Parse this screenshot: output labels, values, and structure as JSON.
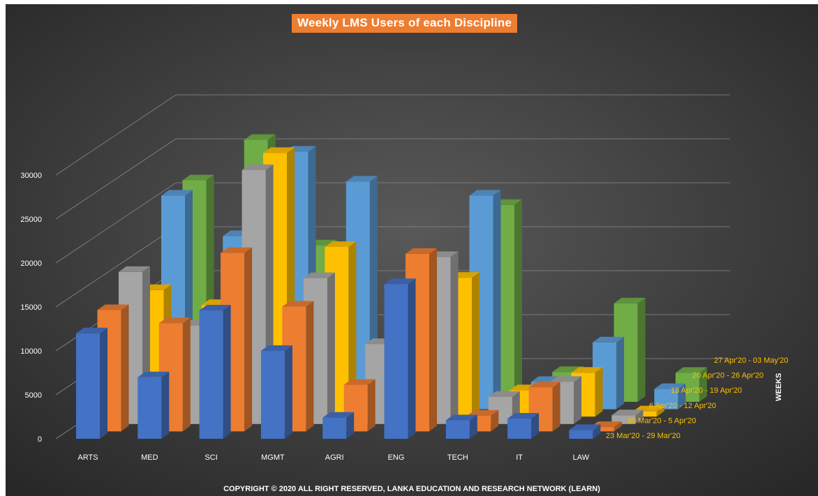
{
  "chart_data": {
    "type": "bar",
    "style": "3d-column",
    "title": "Weekly LMS Users of each Discipline",
    "ylabel": "",
    "xlabel": "",
    "zlabel": "WEEKS",
    "ylim": [
      0,
      30000
    ],
    "yticks": [
      "0",
      "5000",
      "10000",
      "15000",
      "20000",
      "25000",
      "30000"
    ],
    "grid": true,
    "categories": [
      "ARTS",
      "MED",
      "SCI",
      "MGMT",
      "AGRI",
      "ENG",
      "TECH",
      "IT",
      "LAW"
    ],
    "series": [
      {
        "name": "23 Mar'20 - 29 Mar'20",
        "color": "#4472c4",
        "values": [
          12000,
          7000,
          14600,
          10000,
          2400,
          17600,
          2100,
          2300,
          1000
        ]
      },
      {
        "name": "30 Mar'20 - 5 Apr'20",
        "color": "#ed7d31",
        "values": [
          13800,
          12300,
          20300,
          14200,
          5300,
          20200,
          1800,
          5000,
          500
        ]
      },
      {
        "name": "6 Apr'20 - 12 Apr'20",
        "color": "#a5a5a5",
        "values": [
          17300,
          11200,
          28900,
          16600,
          9100,
          19000,
          3100,
          4800,
          1000
        ]
      },
      {
        "name": "13 Apr'20 - 19 Apr'20",
        "color": "#ffc000",
        "values": [
          14400,
          12700,
          30000,
          19300,
          5000,
          15800,
          3000,
          5000,
          600
        ]
      },
      {
        "name": "20 Apr'20 - 26 Apr'20",
        "color": "#5b9bd5",
        "values": [
          24300,
          19700,
          29300,
          25900,
          3900,
          24300,
          3100,
          7600,
          2300
        ]
      },
      {
        "name": "27 Apr'20 - 03 May'20",
        "color": "#70ad47",
        "values": [
          25200,
          29800,
          17800,
          2700,
          3400,
          22400,
          3400,
          11200,
          3300
        ]
      }
    ]
  },
  "footer": {
    "copyright": "COPYRIGHT © 2020 ALL RIGHT RESERVED, LANKA EDUCATION AND RESEARCH NETWORK (LEARN)"
  }
}
